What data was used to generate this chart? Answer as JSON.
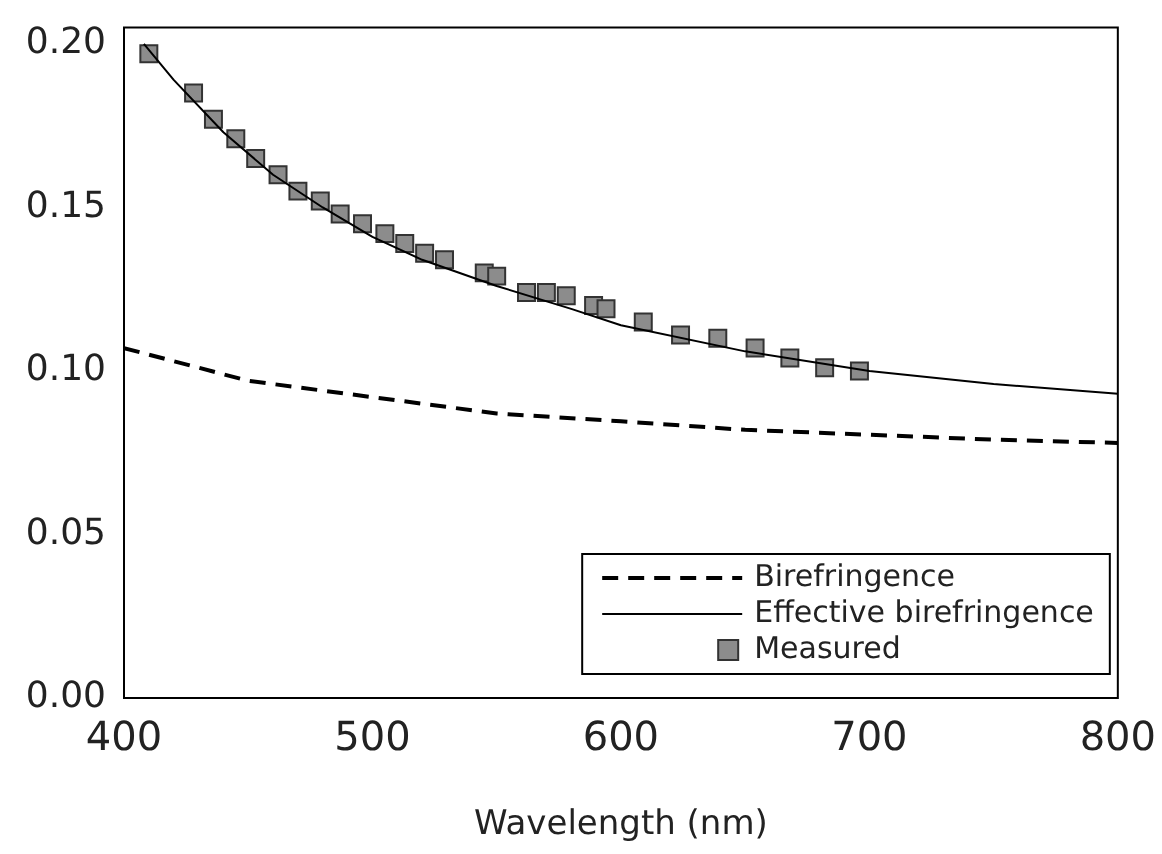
{
  "chart_data": {
    "type": "line",
    "xlabel": "Wavelength (nm)",
    "xlim": [
      400,
      800
    ],
    "xticks": [
      400,
      500,
      600,
      700,
      800
    ],
    "ylim": [
      0,
      0.205
    ],
    "yticks": [
      {
        "value": 0,
        "label": "0.00"
      },
      {
        "value": 0.05,
        "label": "0.05"
      },
      {
        "value": 0.1,
        "label": "0.10"
      },
      {
        "value": 0.15,
        "label": "0.15"
      },
      {
        "value": 0.2,
        "label": "0.20"
      }
    ],
    "grid": false,
    "legend": "bottom right",
    "series": [
      {
        "name": "Birefringence",
        "line_style": "dashed",
        "marker": "none",
        "color": "#000000",
        "x": [
          400,
          450,
          500,
          550,
          600,
          650,
          700,
          750,
          800
        ],
        "values": [
          0.107,
          0.097,
          0.092,
          0.087,
          0.0846,
          0.082,
          0.0805,
          0.079,
          0.078
        ]
      },
      {
        "name": "Effective birefringence",
        "line_style": "solid",
        "marker": "none",
        "color": "#000000",
        "x": [
          408,
          420,
          440,
          460,
          480,
          500,
          520,
          550,
          580,
          600,
          650,
          700,
          750,
          800
        ],
        "values": [
          0.2,
          0.189,
          0.173,
          0.16,
          0.15,
          0.141,
          0.134,
          0.126,
          0.119,
          0.114,
          0.106,
          0.1,
          0.096,
          0.093
        ]
      },
      {
        "name": "Measured",
        "type": "scatter",
        "marker": "square",
        "color": "#8c8c8c",
        "x": [
          410,
          428,
          436,
          445,
          453,
          462,
          470,
          479,
          487,
          496,
          505,
          513,
          521,
          529,
          545,
          550,
          562,
          570,
          578,
          589,
          594,
          609,
          624,
          639,
          654,
          668,
          682,
          696
        ],
        "values": [
          0.197,
          0.185,
          0.177,
          0.171,
          0.165,
          0.16,
          0.155,
          0.152,
          0.148,
          0.145,
          0.142,
          0.139,
          0.136,
          0.134,
          0.13,
          0.129,
          0.124,
          0.124,
          0.123,
          0.12,
          0.119,
          0.115,
          0.111,
          0.11,
          0.107,
          0.104,
          0.101,
          0.1
        ]
      }
    ]
  }
}
